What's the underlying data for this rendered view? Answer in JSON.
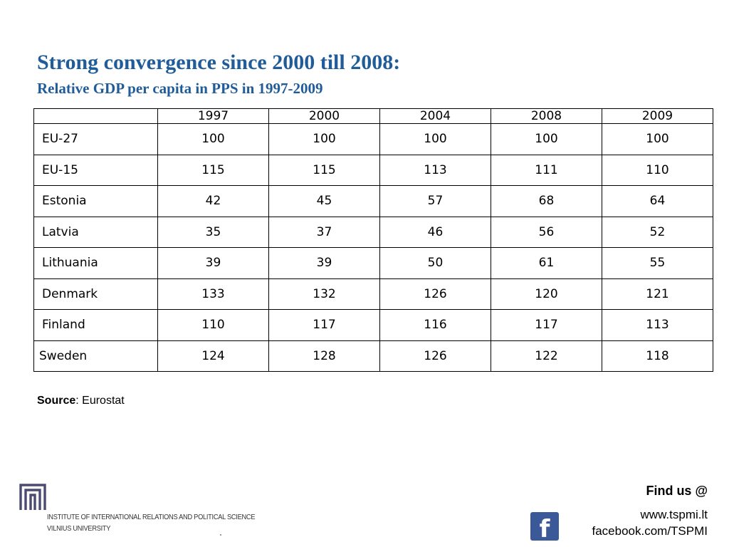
{
  "title": "Strong convergence since 2000 till 2008:",
  "subtitle": "Relative GDP per capita in PPS in 1997-2009",
  "table": {
    "headers": [
      "",
      "1997",
      "2000",
      "2004",
      "2008",
      "2009"
    ],
    "rows": [
      {
        "label": "EU-27",
        "values": [
          "100",
          "100",
          "100",
          "100",
          "100"
        ]
      },
      {
        "label": "EU-15",
        "values": [
          "115",
          "115",
          "113",
          "111",
          "110"
        ]
      },
      {
        "label": "Estonia",
        "values": [
          "42",
          "45",
          "57",
          "68",
          "64"
        ]
      },
      {
        "label": "Latvia",
        "values": [
          "35",
          "37",
          "46",
          "56",
          "52"
        ]
      },
      {
        "label": "Lithuania",
        "values": [
          "39",
          "39",
          "50",
          "61",
          "55"
        ]
      },
      {
        "label": "Denmark",
        "values": [
          "133",
          "132",
          "126",
          "120",
          "121"
        ]
      },
      {
        "label": "Finland",
        "values": [
          "110",
          "117",
          "116",
          "117",
          "113"
        ]
      },
      {
        "label": "Sweden",
        "values": [
          "124",
          "128",
          "126",
          "122",
          "118"
        ]
      }
    ]
  },
  "chart_data": {
    "type": "table",
    "title": "Strong convergence since 2000 till 2008:",
    "subtitle": "Relative GDP per capita in PPS in 1997-2009",
    "columns": [
      "1997",
      "2000",
      "2004",
      "2008",
      "2009"
    ],
    "series": [
      {
        "name": "EU-27",
        "values": [
          100,
          100,
          100,
          100,
          100
        ]
      },
      {
        "name": "EU-15",
        "values": [
          115,
          115,
          113,
          111,
          110
        ]
      },
      {
        "name": "Estonia",
        "values": [
          42,
          45,
          57,
          68,
          64
        ]
      },
      {
        "name": "Latvia",
        "values": [
          35,
          37,
          46,
          56,
          52
        ]
      },
      {
        "name": "Lithuania",
        "values": [
          39,
          39,
          50,
          61,
          55
        ]
      },
      {
        "name": "Denmark",
        "values": [
          133,
          132,
          126,
          120,
          121
        ]
      },
      {
        "name": "Finland",
        "values": [
          110,
          117,
          116,
          117,
          113
        ]
      },
      {
        "name": "Sweden",
        "values": [
          124,
          128,
          126,
          122,
          118
        ]
      }
    ]
  },
  "source": {
    "label": "Source",
    "text": ": Eurostat"
  },
  "footer": {
    "institute_line1": "INSTITUTE OF INTERNATIONAL RELATIONS AND POLITICAL SCIENCE",
    "institute_line2": "VILNIUS UNIVERSITY",
    "find_us": "Find us @",
    "website": "www.tspmi.lt",
    "facebook": "facebook.com/TSPMI",
    "facebook_icon_glyph": "f",
    "logo_icon": "tspmi-logo-icon",
    "facebook_color": "#3b5998"
  },
  "colors": {
    "title": "#1f5c99"
  }
}
